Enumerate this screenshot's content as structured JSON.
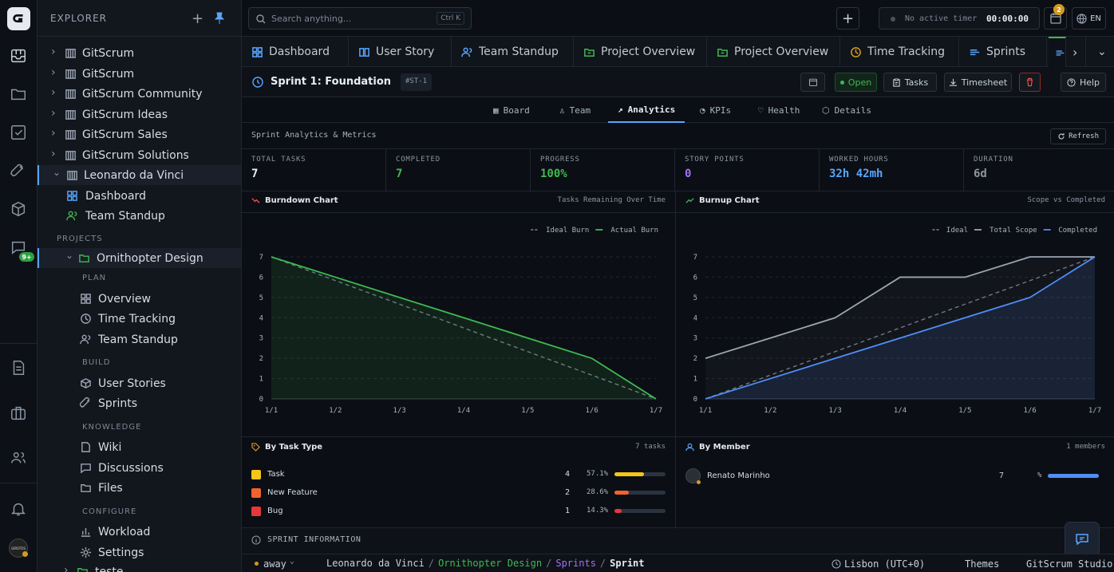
{
  "rail": {
    "notif_badge": "9+",
    "avatar": "GIRSTOS"
  },
  "explorer": {
    "title": "EXPLORER",
    "workspaces": [
      "GitScrum",
      "GitScrum",
      "GitScrum Community",
      "GitScrum Ideas",
      "GitScrum Sales",
      "GitScrum Solutions",
      "Leonardo da Vinci"
    ],
    "ws_children": [
      "Dashboard",
      "Team Standup"
    ],
    "projects_label": "PROJECTS",
    "project": "Ornithopter Design",
    "sections": {
      "plan": "PLAN",
      "build": "BUILD",
      "knowledge": "KNOWLEDGE",
      "configure": "CONFIGURE"
    },
    "plan_items": [
      "Overview",
      "Time Tracking",
      "Team Standup"
    ],
    "build_items": [
      "User Stories",
      "Sprints"
    ],
    "knowledge_items": [
      "Wiki",
      "Discussions",
      "Files"
    ],
    "configure_items": [
      "Workload",
      "Settings"
    ],
    "next_project": "teste"
  },
  "topbar": {
    "search_placeholder": "Search anything...",
    "search_shortcut": "Ctrl K",
    "timer_label": "No active timer",
    "timer_value": "00:00:00",
    "calendar_badge": "2",
    "lang": "EN"
  },
  "tabs": [
    "Dashboard",
    "User Story",
    "Team Standup",
    "Project Overview",
    "Project Overview",
    "Time Tracking",
    "Sprints"
  ],
  "sprint": {
    "title": "Sprint 1: Foundation",
    "code": "#ST-1",
    "status": "Open",
    "tasks_btn": "Tasks",
    "timesheet_btn": "Timesheet",
    "help_btn": "Help"
  },
  "subtabs": [
    "Board",
    "Team",
    "Analytics",
    "KPIs",
    "Health",
    "Details"
  ],
  "analytics": {
    "title": "Sprint Analytics & Metrics",
    "refresh": "Refresh"
  },
  "metrics": [
    {
      "label": "TOTAL TASKS",
      "value": "7",
      "color": "#e6edf3"
    },
    {
      "label": "COMPLETED",
      "value": "7",
      "color": "#3fb950"
    },
    {
      "label": "PROGRESS",
      "value": "100%",
      "color": "#3fb950"
    },
    {
      "label": "STORY POINTS",
      "value": "0",
      "color": "#a371f7"
    },
    {
      "label": "WORKED HOURS",
      "value": "32h 42mh",
      "color": "#58a6ff"
    },
    {
      "label": "DURATION",
      "value": "6d",
      "color": "#8b95a3"
    }
  ],
  "burndown": {
    "title": "Burndown Chart",
    "subtitle": "Tasks Remaining Over Time",
    "legend": [
      "Ideal Burn",
      "Actual Burn"
    ]
  },
  "burnup": {
    "title": "Burnup Chart",
    "subtitle": "Scope vs Completed",
    "legend": [
      "Ideal",
      "Total Scope",
      "Completed"
    ]
  },
  "chart_data": [
    {
      "type": "line",
      "title": "Burndown Chart",
      "subtitle": "Tasks Remaining Over Time",
      "x": [
        "1/1",
        "1/2",
        "1/3",
        "1/4",
        "1/5",
        "1/6",
        "1/7"
      ],
      "ylim": [
        0,
        7
      ],
      "yticks": [
        0,
        1,
        2,
        3,
        4,
        5,
        6,
        7
      ],
      "series": [
        {
          "name": "Ideal Burn",
          "values": [
            7,
            5.83,
            4.67,
            3.5,
            2.33,
            1.17,
            0
          ],
          "color": "#6e7681",
          "dashed": true
        },
        {
          "name": "Actual Burn",
          "values": [
            7,
            6,
            5,
            4,
            3,
            2,
            0
          ],
          "color": "#3fb950"
        }
      ],
      "legend": "top-right",
      "grid": true
    },
    {
      "type": "line",
      "title": "Burnup Chart",
      "subtitle": "Scope vs Completed",
      "x": [
        "1/1",
        "1/2",
        "1/3",
        "1/4",
        "1/5",
        "1/6",
        "1/7"
      ],
      "ylim": [
        0,
        7
      ],
      "yticks": [
        0,
        1,
        2,
        3,
        4,
        5,
        6,
        7
      ],
      "series": [
        {
          "name": "Ideal",
          "values": [
            0,
            1.17,
            2.33,
            3.5,
            4.67,
            5.83,
            7
          ],
          "color": "#6e7681",
          "dashed": true
        },
        {
          "name": "Total Scope",
          "values": [
            2,
            3,
            4,
            6,
            6,
            7,
            7
          ],
          "color": "#9aa4b2"
        },
        {
          "name": "Completed",
          "values": [
            0,
            1,
            2,
            3,
            4,
            5,
            7
          ],
          "color": "#4f8ef7"
        }
      ],
      "legend": "top-right",
      "grid": true
    }
  ],
  "by_task_type": {
    "title": "By Task Type",
    "count": "7 tasks",
    "rows": [
      {
        "name": "Task",
        "count": "4",
        "pct": "57.1%",
        "frac": 0.571,
        "color": "#f5c518"
      },
      {
        "name": "New Feature",
        "count": "2",
        "pct": "28.6%",
        "frac": 0.286,
        "color": "#f0642c"
      },
      {
        "name": "Bug",
        "count": "1",
        "pct": "14.3%",
        "frac": 0.143,
        "color": "#e5383b"
      }
    ]
  },
  "by_member": {
    "title": "By Member",
    "count": "1 members",
    "rows": [
      {
        "name": "Renato Marinho",
        "count": "7",
        "pct": "%",
        "frac": 1
      }
    ]
  },
  "sprint_info": "SPRINT INFORMATION",
  "statusbar": {
    "presence": "away",
    "crumbs": [
      "Leonardo da Vinci",
      "Ornithopter Design",
      "Sprints",
      "Sprint"
    ],
    "timezone": "Lisbon (UTC+0)",
    "themes": "Themes",
    "studio": "GitScrum Studio"
  }
}
